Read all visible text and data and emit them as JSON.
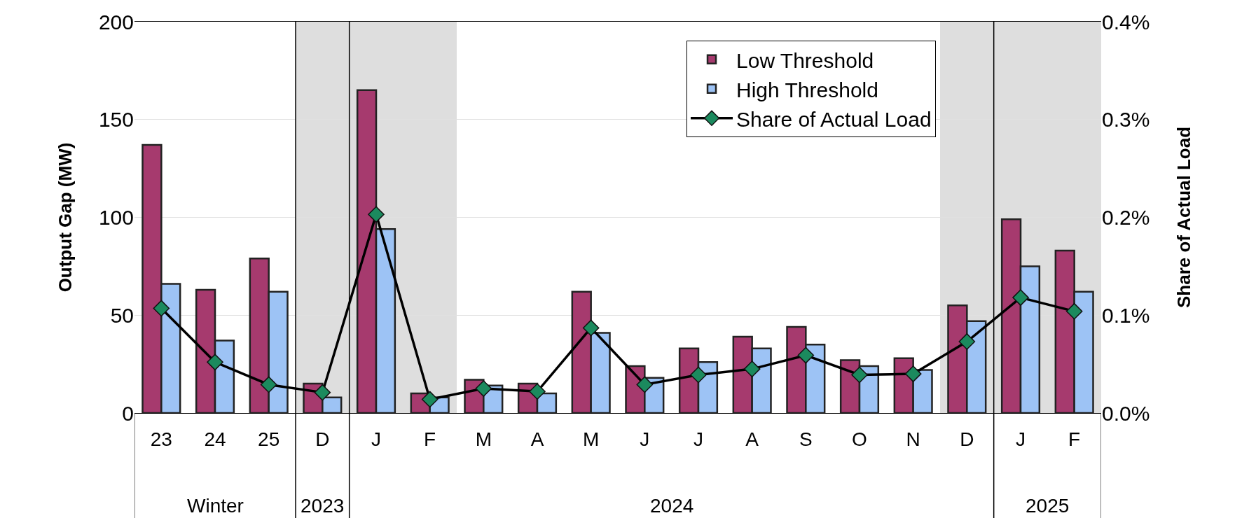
{
  "chart_data": {
    "type": "bar",
    "categories": [
      "23",
      "24",
      "25",
      "D",
      "J",
      "F",
      "M",
      "A",
      "M",
      "J",
      "J",
      "A",
      "S",
      "O",
      "N",
      "D",
      "J",
      "F"
    ],
    "series": [
      {
        "name": "Low Threshold",
        "color": "#a63a6e",
        "values": [
          137,
          63,
          79,
          15,
          165,
          10,
          17,
          15,
          62,
          24,
          33,
          39,
          44,
          27,
          28,
          55,
          99,
          83
        ]
      },
      {
        "name": "High Threshold",
        "color": "#9dc3f5",
        "values": [
          66,
          37,
          62,
          8,
          94,
          8,
          14,
          10,
          41,
          18,
          26,
          33,
          35,
          24,
          22,
          47,
          75,
          62
        ]
      },
      {
        "name": "Share of Actual Load",
        "type": "line",
        "axis": "y2",
        "color": "#1b8a5e",
        "marker": "diamond",
        "values": [
          0.107,
          0.052,
          0.029,
          0.021,
          0.203,
          0.014,
          0.025,
          0.022,
          0.087,
          0.029,
          0.039,
          0.045,
          0.059,
          0.039,
          0.04,
          0.073,
          0.118,
          0.104
        ]
      }
    ],
    "ylabel": "Output Gap (MW)",
    "y2label": "Share of Actual Load",
    "ylim": [
      0,
      200
    ],
    "yticks": [
      0,
      50,
      100,
      150,
      200
    ],
    "y2lim": [
      0,
      0.4
    ],
    "y2ticks": [
      {
        "value": 0,
        "label": "0.0%"
      },
      {
        "value": 0.1,
        "label": "0.1%"
      },
      {
        "value": 0.2,
        "label": "0.2%"
      },
      {
        "value": 0.3,
        "label": "0.3%"
      },
      {
        "value": 0.4,
        "label": "0.4%"
      }
    ],
    "annotations": [
      "Winter",
      "2023",
      "2024",
      "2025"
    ],
    "grid": "y",
    "legend": "top right"
  }
}
